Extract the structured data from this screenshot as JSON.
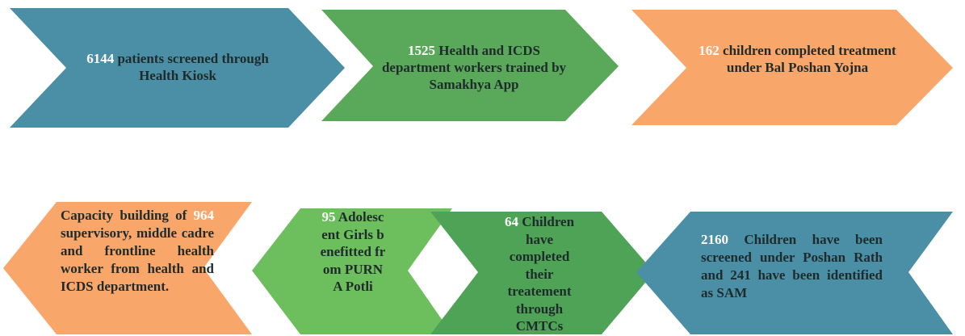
{
  "nodes": [
    {
      "color": "#4a8fa6",
      "parts": [
        {
          "text": "6144",
          "highlight": true
        },
        {
          "text": " patients screened through Health Kiosk"
        }
      ]
    },
    {
      "color": "#5aa85a",
      "parts": [
        {
          "text": "1525",
          "highlight": true
        },
        {
          "text": " Health and ICDS department workers trained by Samakhya App"
        }
      ]
    },
    {
      "color": "#f9a66a",
      "parts": [
        {
          "text": "162",
          "highlight": true
        },
        {
          "text": " children completed treatment under Bal Poshan Yojna"
        }
      ]
    },
    {
      "color": "#f9a66a",
      "parts": [
        {
          "text": "Capacity building of "
        },
        {
          "text": "964",
          "highlight": true
        },
        {
          "text": " supervisory, middle cadre and frontline health worker from health and ICDS department."
        }
      ]
    },
    {
      "color": "#6cbf5c",
      "parts": [
        {
          "text": "95",
          "highlight": true
        },
        {
          "text": " Adolescent Girls benefitted from PURNA Potli"
        }
      ]
    },
    {
      "color": "#4fa356",
      "parts": [
        {
          "text": "64",
          "highlight": true
        },
        {
          "text": " Children have completed their treatement through CMTCs"
        }
      ]
    },
    {
      "color": "#4a8fa6",
      "parts": [
        {
          "text": "2160",
          "highlight": true
        },
        {
          "text": " Children have been screened under Poshan Rath and 241 have been identified as SAM"
        }
      ]
    }
  ]
}
